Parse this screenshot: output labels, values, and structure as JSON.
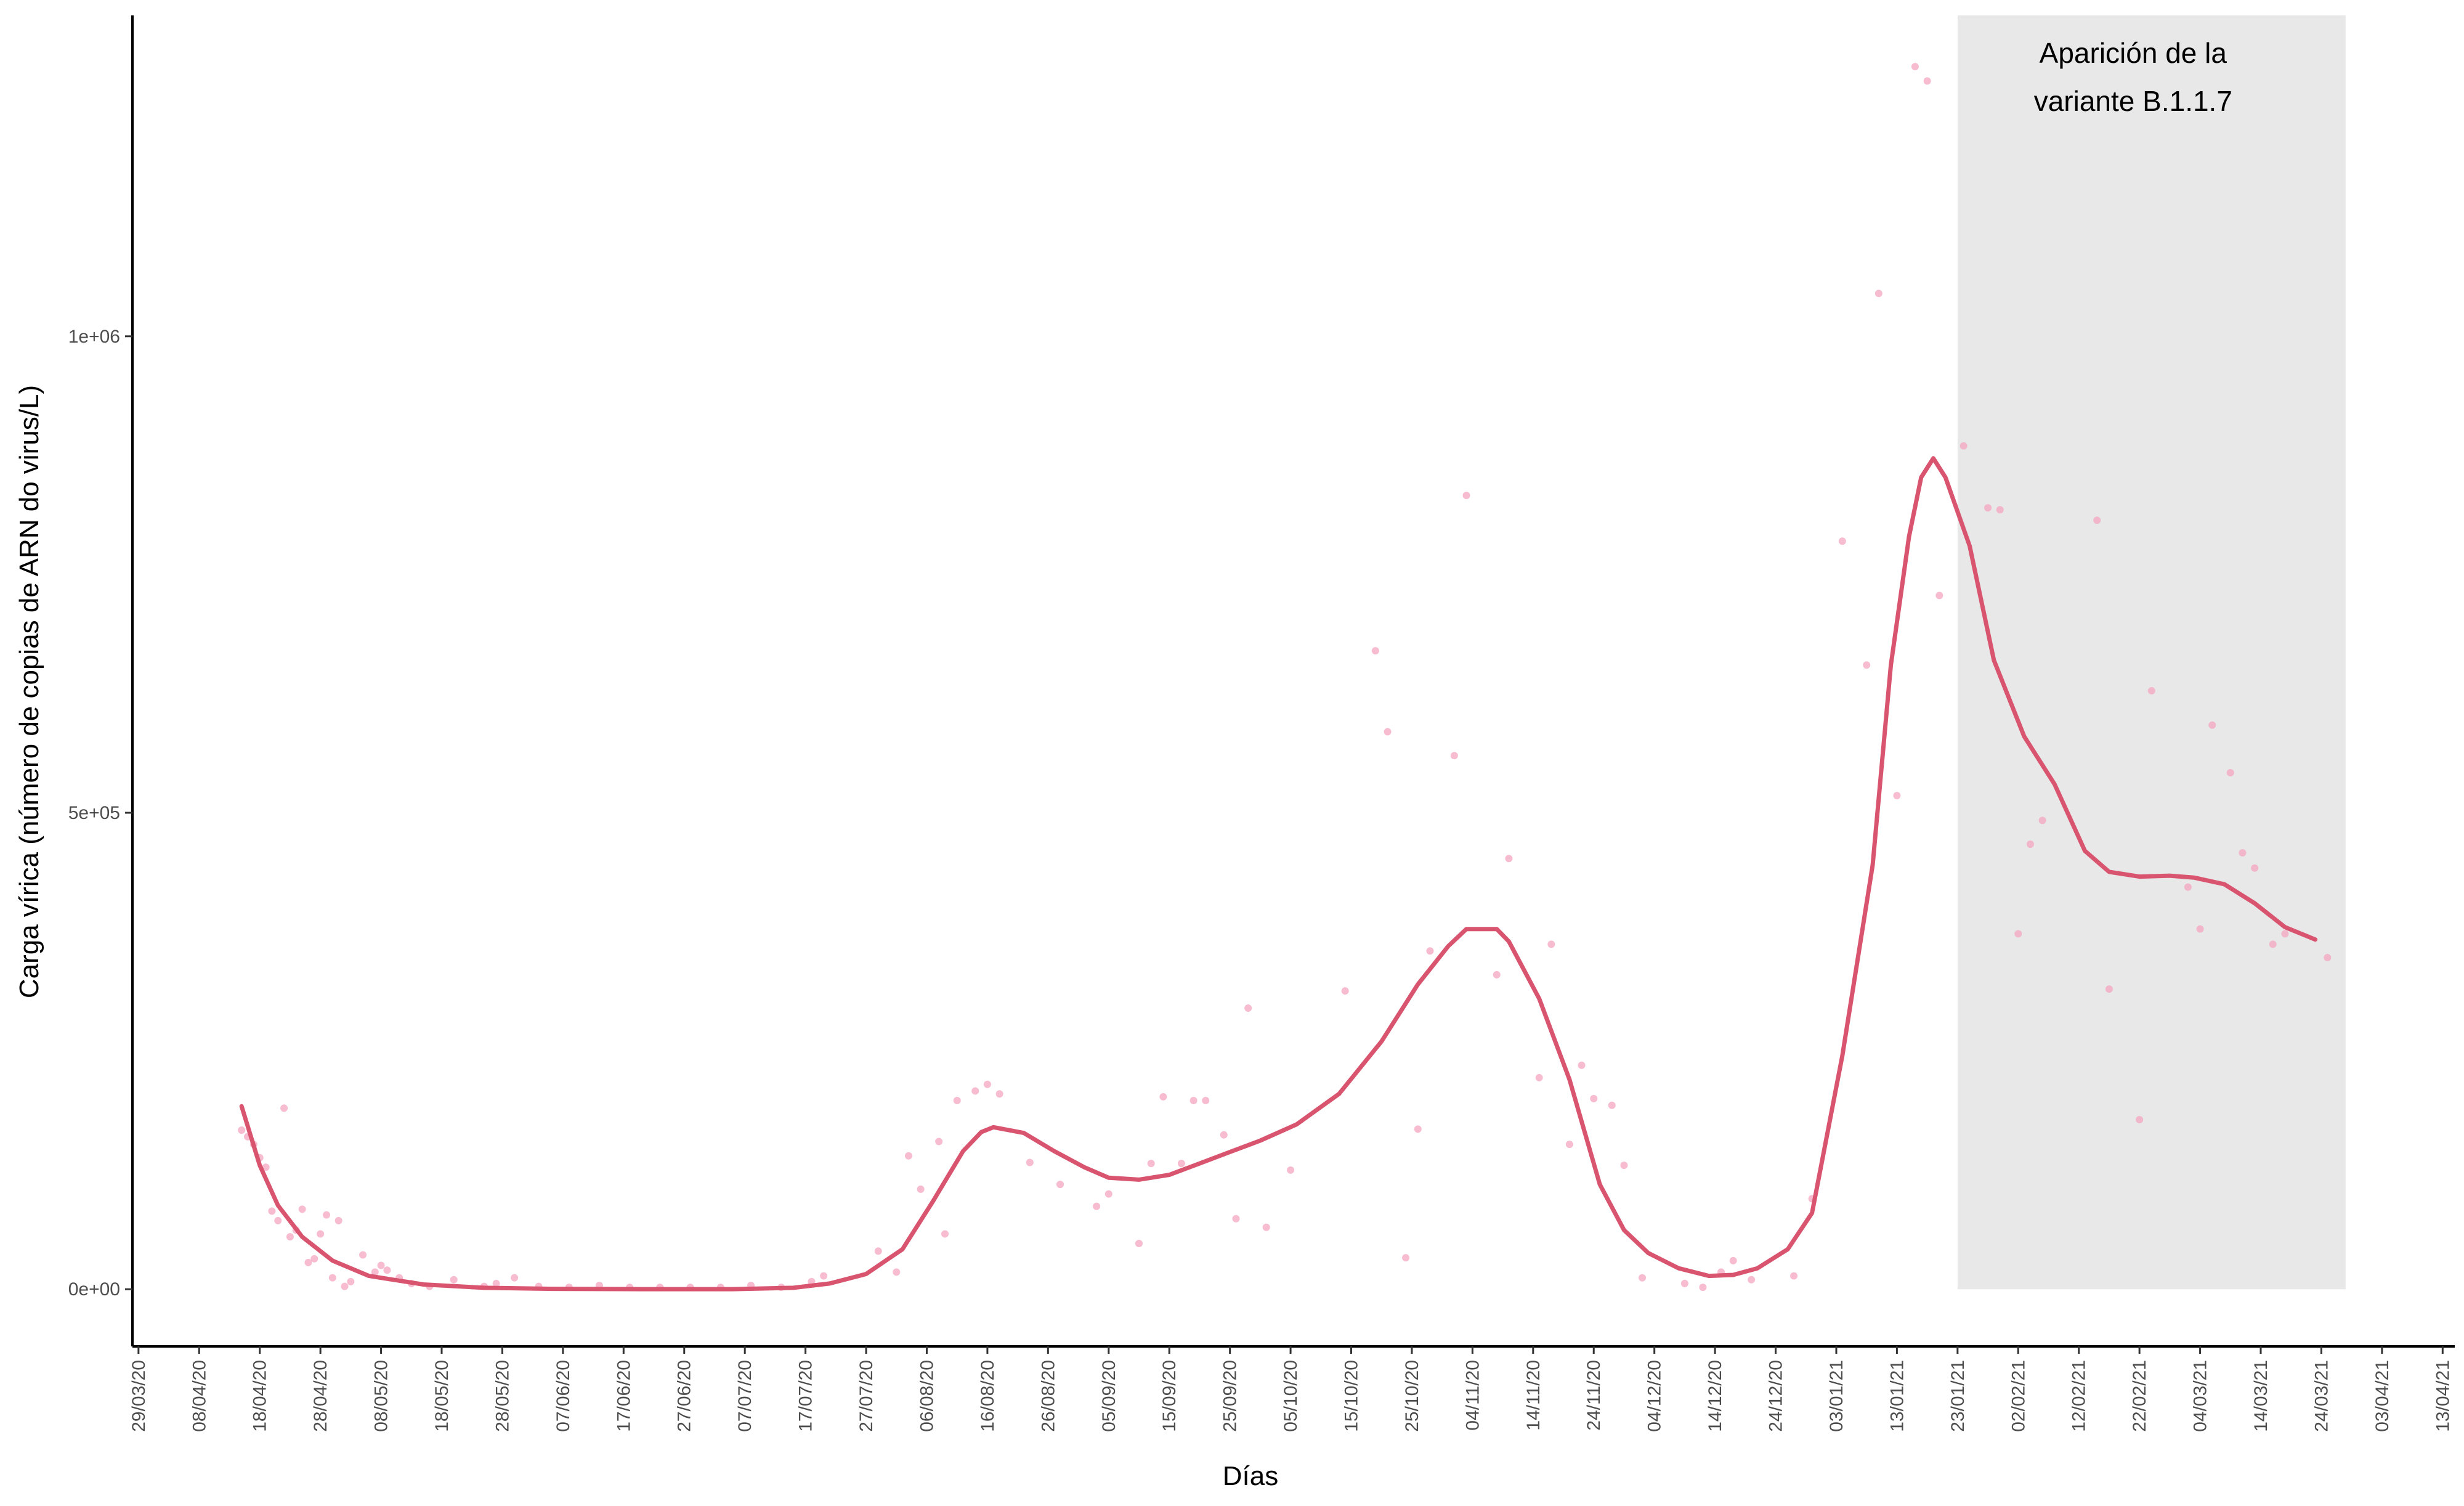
{
  "chart_data": {
    "type": "line",
    "xlabel": "Días",
    "ylabel": "Carga vírica (número de copias de ARN do virus/L)",
    "ylim": [
      -60000,
      1340000
    ],
    "xlim": [
      "2020-03-28",
      "2021-04-15"
    ],
    "y_ticks": [
      0,
      500000,
      1000000
    ],
    "y_tick_labels": [
      "0e+00",
      "5e+05",
      "1e+06"
    ],
    "x_ticks": [
      "2020-03-29",
      "2020-04-08",
      "2020-04-18",
      "2020-04-28",
      "2020-05-08",
      "2020-05-18",
      "2020-05-28",
      "2020-06-07",
      "2020-06-17",
      "2020-06-27",
      "2020-07-07",
      "2020-07-17",
      "2020-07-27",
      "2020-08-06",
      "2020-08-16",
      "2020-08-26",
      "2020-09-05",
      "2020-09-15",
      "2020-09-25",
      "2020-10-05",
      "2020-10-15",
      "2020-10-25",
      "2020-11-04",
      "2020-11-14",
      "2020-11-24",
      "2020-12-04",
      "2020-12-14",
      "2020-12-24",
      "2021-01-03",
      "2021-01-13",
      "2021-01-23",
      "2021-02-02",
      "2021-02-12",
      "2021-02-22",
      "2021-03-04",
      "2021-03-14",
      "2021-03-24",
      "2021-04-03",
      "2021-04-13"
    ],
    "x_tick_labels": [
      "29/03/20",
      "08/04/20",
      "18/04/20",
      "28/04/20",
      "08/05/20",
      "18/05/20",
      "28/05/20",
      "07/06/20",
      "17/06/20",
      "27/06/20",
      "07/07/20",
      "17/07/20",
      "27/07/20",
      "06/08/20",
      "16/08/20",
      "26/08/20",
      "05/09/20",
      "15/09/20",
      "25/09/20",
      "05/10/20",
      "15/10/20",
      "25/10/20",
      "04/11/20",
      "14/11/20",
      "24/11/20",
      "04/12/20",
      "14/12/20",
      "24/12/20",
      "03/01/21",
      "13/01/21",
      "23/01/21",
      "02/02/21",
      "12/02/21",
      "22/02/21",
      "04/03/21",
      "14/03/21",
      "24/03/21",
      "03/04/21",
      "13/04/21"
    ],
    "shaded_region": {
      "x_start": "2021-01-23",
      "x_end": "2021-03-28",
      "color": "#e8e8e8",
      "label_lines": [
        "Aparición de la",
        "variante B.1.1.7"
      ]
    },
    "series": [
      {
        "kind": "points",
        "color": "#f4a6bf",
        "points": [
          [
            "2020-04-15",
            167000
          ],
          [
            "2020-04-16",
            160000
          ],
          [
            "2020-04-17",
            152000
          ],
          [
            "2020-04-18",
            138000
          ],
          [
            "2020-04-19",
            128000
          ],
          [
            "2020-04-20",
            82000
          ],
          [
            "2020-04-21",
            72000
          ],
          [
            "2020-04-22",
            190000
          ],
          [
            "2020-04-23",
            55000
          ],
          [
            "2020-04-24",
            62000
          ],
          [
            "2020-04-25",
            84000
          ],
          [
            "2020-04-26",
            28000
          ],
          [
            "2020-04-27",
            32000
          ],
          [
            "2020-04-28",
            58000
          ],
          [
            "2020-04-29",
            78000
          ],
          [
            "2020-04-30",
            12000
          ],
          [
            "2020-05-01",
            72000
          ],
          [
            "2020-05-02",
            3000
          ],
          [
            "2020-05-03",
            8000
          ],
          [
            "2020-05-05",
            36000
          ],
          [
            "2020-05-07",
            18000
          ],
          [
            "2020-05-08",
            25000
          ],
          [
            "2020-05-09",
            20000
          ],
          [
            "2020-05-11",
            12000
          ],
          [
            "2020-05-13",
            6000
          ],
          [
            "2020-05-16",
            3000
          ],
          [
            "2020-05-20",
            10000
          ],
          [
            "2020-05-25",
            3000
          ],
          [
            "2020-05-27",
            6000
          ],
          [
            "2020-05-30",
            12000
          ],
          [
            "2020-06-03",
            3000
          ],
          [
            "2020-06-08",
            2000
          ],
          [
            "2020-06-13",
            4000
          ],
          [
            "2020-06-18",
            2000
          ],
          [
            "2020-06-23",
            2000
          ],
          [
            "2020-06-28",
            2000
          ],
          [
            "2020-07-03",
            2000
          ],
          [
            "2020-07-08",
            4000
          ],
          [
            "2020-07-13",
            2000
          ],
          [
            "2020-07-18",
            8000
          ],
          [
            "2020-07-20",
            14000
          ],
          [
            "2020-07-29",
            40000
          ],
          [
            "2020-08-01",
            18000
          ],
          [
            "2020-08-03",
            140000
          ],
          [
            "2020-08-05",
            105000
          ],
          [
            "2020-08-08",
            155000
          ],
          [
            "2020-08-09",
            58000
          ],
          [
            "2020-08-11",
            198000
          ],
          [
            "2020-08-14",
            208000
          ],
          [
            "2020-08-16",
            215000
          ],
          [
            "2020-08-18",
            205000
          ],
          [
            "2020-08-23",
            133000
          ],
          [
            "2020-08-28",
            110000
          ],
          [
            "2020-09-03",
            87000
          ],
          [
            "2020-09-05",
            100000
          ],
          [
            "2020-09-10",
            48000
          ],
          [
            "2020-09-12",
            132000
          ],
          [
            "2020-09-14",
            202000
          ],
          [
            "2020-09-17",
            132000
          ],
          [
            "2020-09-19",
            198000
          ],
          [
            "2020-09-21",
            198000
          ],
          [
            "2020-09-24",
            162000
          ],
          [
            "2020-09-26",
            74000
          ],
          [
            "2020-09-28",
            295000
          ],
          [
            "2020-10-01",
            65000
          ],
          [
            "2020-10-05",
            125000
          ],
          [
            "2020-10-14",
            313000
          ],
          [
            "2020-10-19",
            670000
          ],
          [
            "2020-10-21",
            585000
          ],
          [
            "2020-10-24",
            33000
          ],
          [
            "2020-10-26",
            168000
          ],
          [
            "2020-10-28",
            355000
          ],
          [
            "2020-11-01",
            560000
          ],
          [
            "2020-11-03",
            833000
          ],
          [
            "2020-11-08",
            330000
          ],
          [
            "2020-11-10",
            452000
          ],
          [
            "2020-11-15",
            222000
          ],
          [
            "2020-11-17",
            362000
          ],
          [
            "2020-11-20",
            152000
          ],
          [
            "2020-11-22",
            235000
          ],
          [
            "2020-11-24",
            200000
          ],
          [
            "2020-11-27",
            193000
          ],
          [
            "2020-11-29",
            130000
          ],
          [
            "2020-12-02",
            12000
          ],
          [
            "2020-12-09",
            6000
          ],
          [
            "2020-12-12",
            2000
          ],
          [
            "2020-12-15",
            18000
          ],
          [
            "2020-12-17",
            30000
          ],
          [
            "2020-12-20",
            10000
          ],
          [
            "2020-12-27",
            14000
          ],
          [
            "2020-12-30",
            95000
          ],
          [
            "2021-01-04",
            785000
          ],
          [
            "2021-01-08",
            655000
          ],
          [
            "2021-01-10",
            1045000
          ],
          [
            "2021-01-13",
            518000
          ],
          [
            "2021-01-16",
            1283000
          ],
          [
            "2021-01-18",
            1268000
          ],
          [
            "2021-01-20",
            728000
          ],
          [
            "2021-01-24",
            885000
          ],
          [
            "2021-01-28",
            820000
          ],
          [
            "2021-01-30",
            818000
          ],
          [
            "2021-02-02",
            373000
          ],
          [
            "2021-02-04",
            467000
          ],
          [
            "2021-02-06",
            492000
          ],
          [
            "2021-02-15",
            807000
          ],
          [
            "2021-02-17",
            315000
          ],
          [
            "2021-02-22",
            178000
          ],
          [
            "2021-02-24",
            628000
          ],
          [
            "2021-03-02",
            422000
          ],
          [
            "2021-03-04",
            378000
          ],
          [
            "2021-03-06",
            592000
          ],
          [
            "2021-03-09",
            542000
          ],
          [
            "2021-03-11",
            458000
          ],
          [
            "2021-03-13",
            442000
          ],
          [
            "2021-03-16",
            362000
          ],
          [
            "2021-03-18",
            373000
          ],
          [
            "2021-03-25",
            348000
          ]
        ]
      },
      {
        "kind": "line",
        "color": "#d9546f",
        "points": [
          [
            "2020-04-15",
            192000
          ],
          [
            "2020-04-18",
            130000
          ],
          [
            "2020-04-21",
            88000
          ],
          [
            "2020-04-25",
            55000
          ],
          [
            "2020-04-30",
            30000
          ],
          [
            "2020-05-06",
            14000
          ],
          [
            "2020-05-15",
            5000
          ],
          [
            "2020-05-25",
            1500
          ],
          [
            "2020-06-05",
            400
          ],
          [
            "2020-06-20",
            100
          ],
          [
            "2020-07-05",
            100
          ],
          [
            "2020-07-15",
            1500
          ],
          [
            "2020-07-21",
            6000
          ],
          [
            "2020-07-27",
            16000
          ],
          [
            "2020-08-02",
            42000
          ],
          [
            "2020-08-07",
            92000
          ],
          [
            "2020-08-12",
            145000
          ],
          [
            "2020-08-15",
            165000
          ],
          [
            "2020-08-17",
            170000
          ],
          [
            "2020-08-22",
            164000
          ],
          [
            "2020-08-27",
            145000
          ],
          [
            "2020-09-01",
            128000
          ],
          [
            "2020-09-05",
            117000
          ],
          [
            "2020-09-10",
            115000
          ],
          [
            "2020-09-15",
            120000
          ],
          [
            "2020-09-20",
            132000
          ],
          [
            "2020-09-25",
            144000
          ],
          [
            "2020-09-30",
            156000
          ],
          [
            "2020-10-06",
            173000
          ],
          [
            "2020-10-13",
            205000
          ],
          [
            "2020-10-20",
            260000
          ],
          [
            "2020-10-26",
            320000
          ],
          [
            "2020-10-31",
            360000
          ],
          [
            "2020-11-03",
            378000
          ],
          [
            "2020-11-08",
            378000
          ],
          [
            "2020-11-10",
            365000
          ],
          [
            "2020-11-15",
            305000
          ],
          [
            "2020-11-20",
            220000
          ],
          [
            "2020-11-25",
            110000
          ],
          [
            "2020-11-29",
            62000
          ],
          [
            "2020-12-03",
            38000
          ],
          [
            "2020-12-08",
            22000
          ],
          [
            "2020-12-13",
            14000
          ],
          [
            "2020-12-17",
            15000
          ],
          [
            "2020-12-21",
            22000
          ],
          [
            "2020-12-26",
            42000
          ],
          [
            "2020-12-30",
            80000
          ],
          [
            "2021-01-04",
            245000
          ],
          [
            "2021-01-09",
            445000
          ],
          [
            "2021-01-12",
            655000
          ],
          [
            "2021-01-15",
            790000
          ],
          [
            "2021-01-17",
            852000
          ],
          [
            "2021-01-19",
            872000
          ],
          [
            "2021-01-21",
            852000
          ],
          [
            "2021-01-25",
            780000
          ],
          [
            "2021-01-29",
            660000
          ],
          [
            "2021-02-03",
            580000
          ],
          [
            "2021-02-08",
            530000
          ],
          [
            "2021-02-13",
            460000
          ],
          [
            "2021-02-17",
            438000
          ],
          [
            "2021-02-22",
            433000
          ],
          [
            "2021-02-27",
            434000
          ],
          [
            "2021-03-03",
            432000
          ],
          [
            "2021-03-08",
            425000
          ],
          [
            "2021-03-13",
            405000
          ],
          [
            "2021-03-18",
            380000
          ],
          [
            "2021-03-23",
            367000
          ]
        ]
      }
    ]
  }
}
